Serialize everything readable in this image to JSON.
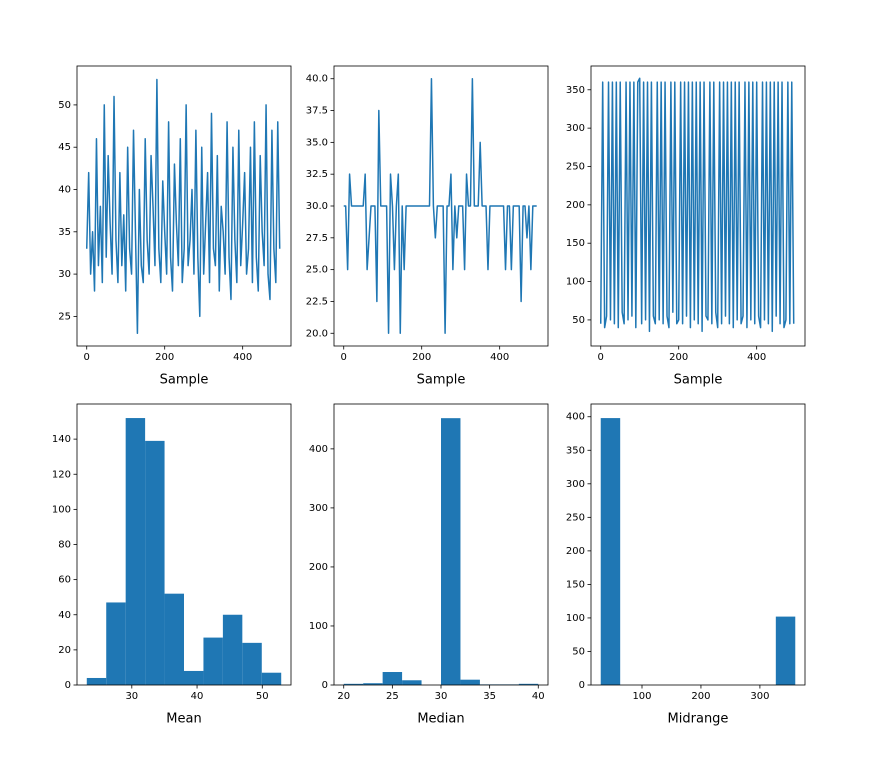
{
  "chart_data": [
    {
      "type": "line",
      "xlabel": "Sample",
      "color": "#1f77b4",
      "x": [
        0,
        5,
        10,
        15,
        20,
        25,
        30,
        35,
        40,
        45,
        50,
        55,
        60,
        65,
        70,
        75,
        80,
        85,
        90,
        95,
        100,
        105,
        110,
        115,
        120,
        125,
        130,
        135,
        140,
        145,
        150,
        155,
        160,
        165,
        170,
        175,
        180,
        185,
        190,
        195,
        200,
        205,
        210,
        215,
        220,
        225,
        230,
        235,
        240,
        245,
        250,
        255,
        260,
        265,
        270,
        275,
        280,
        285,
        290,
        295,
        300,
        305,
        310,
        315,
        320,
        325,
        330,
        335,
        340,
        345,
        350,
        355,
        360,
        365,
        370,
        375,
        380,
        385,
        390,
        395,
        400,
        405,
        410,
        415,
        420,
        425,
        430,
        435,
        440,
        445,
        450,
        455,
        460,
        465,
        470,
        475,
        480,
        485,
        490,
        495
      ],
      "values": [
        33,
        42,
        30,
        35,
        28,
        46,
        31,
        38,
        29,
        50,
        32,
        44,
        36,
        30,
        51,
        34,
        29,
        42,
        31,
        37,
        28,
        45,
        33,
        30,
        47,
        35,
        23,
        40,
        31,
        29,
        46,
        34,
        30,
        44,
        38,
        31,
        53,
        33,
        29,
        41,
        35,
        30,
        48,
        32,
        28,
        43,
        36,
        31,
        46,
        29,
        33,
        50,
        31,
        34,
        40,
        30,
        47,
        32,
        25,
        45,
        30,
        36,
        42,
        29,
        49,
        33,
        31,
        44,
        28,
        38,
        35,
        30,
        48,
        32,
        27,
        45,
        34,
        29,
        47,
        31,
        36,
        42,
        30,
        33,
        45,
        29,
        48,
        32,
        28,
        44,
        35,
        31,
        50,
        30,
        27,
        47,
        33,
        29,
        48,
        33
      ],
      "xlim": [
        -24.95,
        523.95
      ],
      "ylim": [
        21.5,
        54.6
      ],
      "xticks": [
        0,
        200,
        400
      ],
      "yticks": [
        25,
        30,
        35,
        40,
        45,
        50
      ]
    },
    {
      "type": "line",
      "xlabel": "Sample",
      "color": "#1f77b4",
      "x": [
        0,
        5,
        10,
        15,
        20,
        25,
        30,
        35,
        40,
        45,
        50,
        55,
        60,
        65,
        70,
        75,
        80,
        85,
        90,
        95,
        100,
        105,
        110,
        115,
        120,
        125,
        130,
        135,
        140,
        145,
        150,
        155,
        160,
        165,
        170,
        175,
        180,
        185,
        190,
        195,
        200,
        205,
        210,
        215,
        220,
        225,
        230,
        235,
        240,
        245,
        250,
        255,
        260,
        265,
        270,
        275,
        280,
        285,
        290,
        295,
        300,
        305,
        310,
        315,
        320,
        325,
        330,
        335,
        340,
        345,
        350,
        355,
        360,
        365,
        370,
        375,
        380,
        385,
        390,
        395,
        400,
        405,
        410,
        415,
        420,
        425,
        430,
        435,
        440,
        445,
        450,
        455,
        460,
        465,
        470,
        475,
        480,
        485,
        490,
        495
      ],
      "values": [
        30,
        30,
        25,
        32.5,
        30,
        30,
        30,
        30,
        30,
        30,
        30,
        32.5,
        25,
        27.5,
        30,
        30,
        30,
        22.5,
        37.5,
        30,
        30,
        30,
        30,
        20,
        32.5,
        30,
        25,
        30,
        32.5,
        20,
        30,
        25,
        30,
        30,
        30,
        30,
        30,
        30,
        30,
        30,
        30,
        30,
        30,
        30,
        30,
        40,
        30,
        27.5,
        30,
        30,
        30,
        30,
        20,
        30,
        30,
        32.5,
        25,
        30,
        27.5,
        30,
        30,
        30,
        25,
        32.5,
        30,
        30,
        40,
        30,
        30,
        30,
        35,
        30,
        30,
        30,
        25,
        30,
        30,
        30,
        30,
        30,
        30,
        30,
        30,
        25,
        30,
        30,
        25,
        30,
        30,
        30,
        30,
        22.5,
        30,
        30,
        27.5,
        30,
        25,
        30,
        30,
        30
      ],
      "xlim": [
        -24.95,
        523.95
      ],
      "ylim": [
        19,
        41
      ],
      "xticks": [
        0,
        200,
        400
      ],
      "yticks": [
        {
          "value": 20,
          "label": "20.0"
        },
        22.5,
        {
          "value": 25,
          "label": "25.0"
        },
        27.5,
        {
          "value": 30,
          "label": "30.0"
        },
        32.5,
        {
          "value": 35,
          "label": "35.0"
        },
        37.5,
        {
          "value": 40,
          "label": "40.0"
        }
      ]
    },
    {
      "type": "line",
      "xlabel": "Sample",
      "color": "#1f77b4",
      "x": [
        0,
        5,
        10,
        15,
        20,
        25,
        30,
        35,
        40,
        45,
        50,
        55,
        60,
        65,
        70,
        75,
        80,
        85,
        90,
        95,
        100,
        105,
        110,
        115,
        120,
        125,
        130,
        135,
        140,
        145,
        150,
        155,
        160,
        165,
        170,
        175,
        180,
        185,
        190,
        195,
        200,
        205,
        210,
        215,
        220,
        225,
        230,
        235,
        240,
        245,
        250,
        255,
        260,
        265,
        270,
        275,
        280,
        285,
        290,
        295,
        300,
        305,
        310,
        315,
        320,
        325,
        330,
        335,
        340,
        345,
        350,
        355,
        360,
        365,
        370,
        375,
        380,
        385,
        390,
        395,
        400,
        405,
        410,
        415,
        420,
        425,
        430,
        435,
        440,
        445,
        450,
        455,
        460,
        465,
        470,
        475,
        480,
        485,
        490,
        495
      ],
      "values": [
        45,
        360,
        40,
        55,
        360,
        50,
        360,
        45,
        360,
        40,
        360,
        60,
        45,
        360,
        50,
        360,
        55,
        360,
        40,
        360,
        365,
        45,
        360,
        50,
        360,
        35,
        360,
        55,
        45,
        360,
        50,
        360,
        45,
        360,
        55,
        40,
        360,
        60,
        360,
        45,
        50,
        360,
        45,
        360,
        55,
        360,
        40,
        360,
        50,
        360,
        45,
        360,
        35,
        360,
        55,
        50,
        360,
        45,
        360,
        60,
        40,
        360,
        45,
        360,
        55,
        360,
        45,
        360,
        40,
        360,
        50,
        360,
        45,
        55,
        360,
        40,
        360,
        50,
        360,
        45,
        360,
        55,
        40,
        360,
        50,
        360,
        45,
        360,
        35,
        360,
        55,
        360,
        45,
        360,
        40,
        50,
        360,
        45,
        360,
        45
      ],
      "xlim": [
        -24.95,
        523.95
      ],
      "ylim": [
        16,
        381
      ],
      "xticks": [
        0,
        200,
        400
      ],
      "yticks": [
        50,
        100,
        150,
        200,
        250,
        300,
        350
      ]
    },
    {
      "type": "histogram",
      "xlabel": "Mean",
      "color": "#1f77b4",
      "bins": [
        23.1,
        26.08,
        29.06,
        32.04,
        35.02,
        38.0,
        40.98,
        43.96,
        46.94,
        49.92,
        52.9
      ],
      "values": [
        4,
        47,
        152,
        139,
        52,
        8,
        27,
        40,
        24,
        7
      ],
      "xlim": [
        21.6,
        54.4
      ],
      "ylim": [
        0,
        160
      ],
      "xticks": [
        30,
        40,
        50
      ],
      "yticks": [
        0,
        20,
        40,
        60,
        80,
        100,
        120,
        140
      ]
    },
    {
      "type": "histogram",
      "xlabel": "Median",
      "color": "#1f77b4",
      "bins": [
        20,
        22,
        24,
        26,
        28,
        30,
        32,
        34,
        36,
        38,
        40
      ],
      "values": [
        2,
        3,
        22,
        8,
        0,
        452,
        9,
        1,
        1,
        2
      ],
      "xlim": [
        19,
        41
      ],
      "ylim": [
        0,
        476
      ],
      "xticks": [
        20,
        25,
        30,
        35,
        40
      ],
      "yticks": [
        0,
        100,
        200,
        300,
        400
      ]
    },
    {
      "type": "histogram",
      "xlabel": "Midrange",
      "color": "#1f77b4",
      "bins": [
        30,
        63,
        96,
        129,
        162,
        195,
        228,
        261,
        294,
        327,
        360
      ],
      "values": [
        398,
        0,
        0,
        0,
        0,
        0,
        0,
        0,
        0,
        102
      ],
      "xlim": [
        13.5,
        376.5
      ],
      "ylim": [
        0,
        419
      ],
      "xticks": [
        100,
        200,
        300
      ],
      "yticks": [
        0,
        50,
        100,
        150,
        200,
        250,
        300,
        350,
        400
      ]
    }
  ]
}
